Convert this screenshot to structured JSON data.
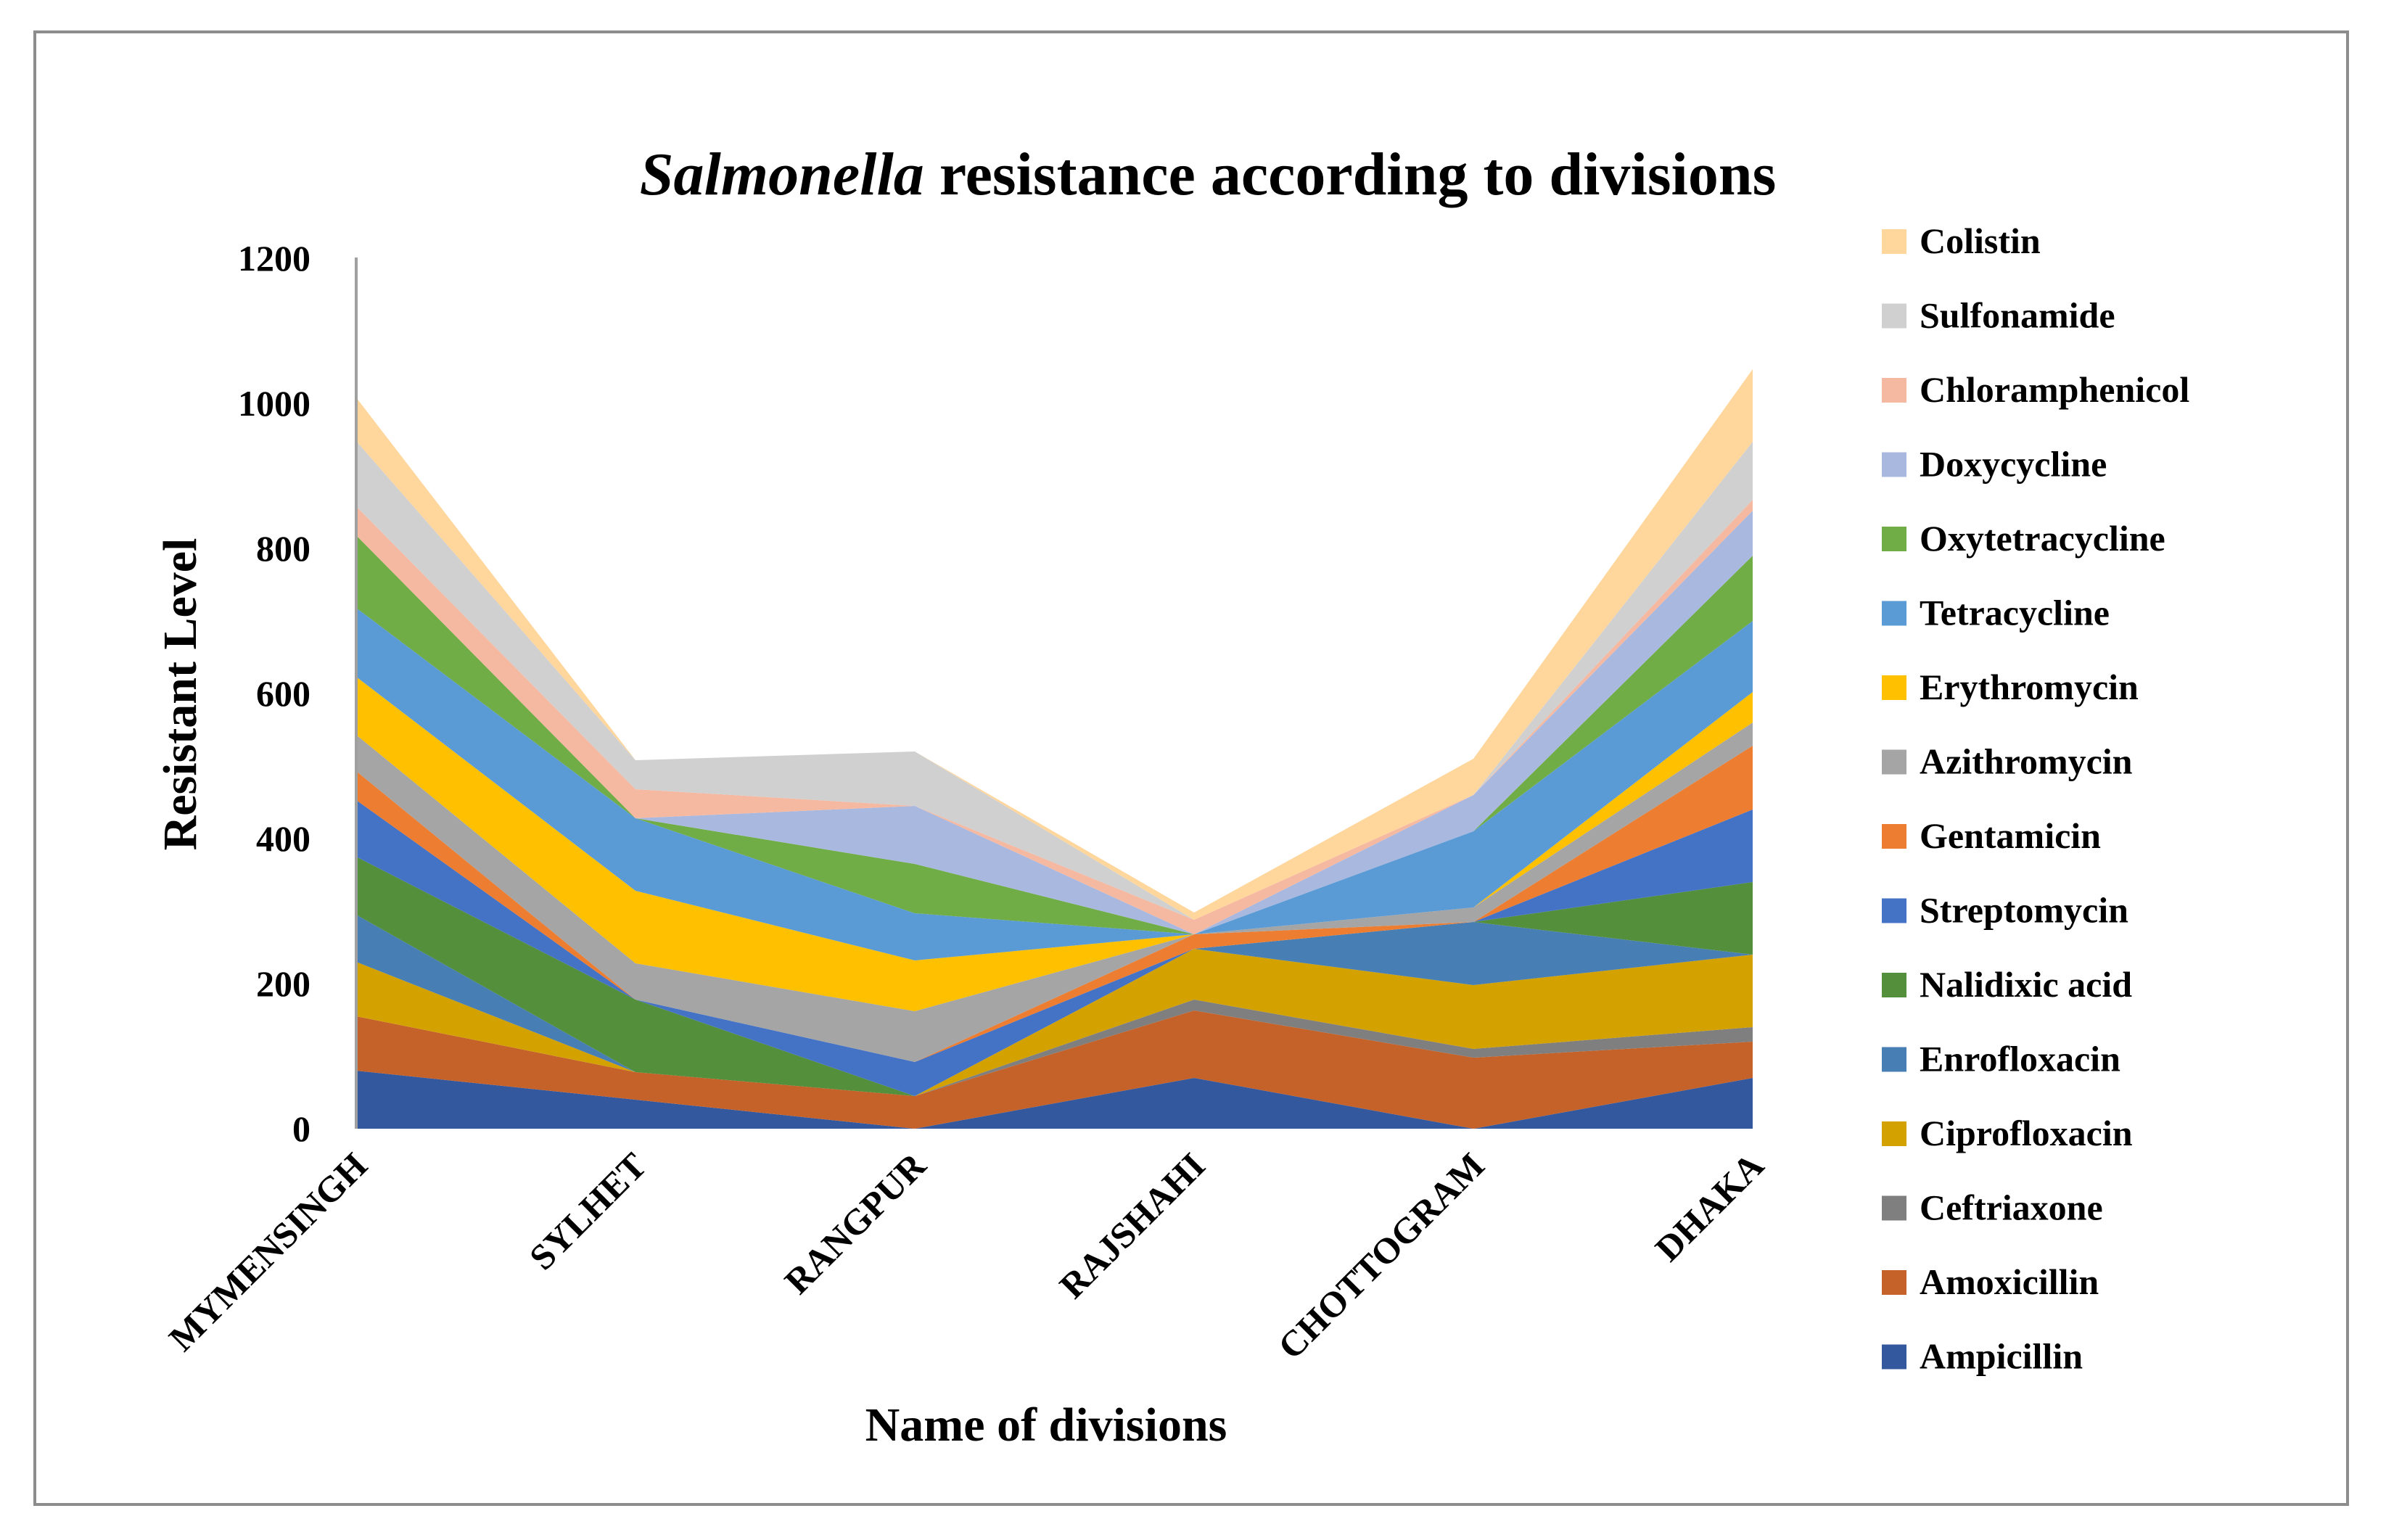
{
  "chart_data": {
    "type": "area",
    "stacked": true,
    "title_italic": "Salmonella",
    "title_rest": " resistance according to divisions",
    "xlabel": "Name of divisions",
    "ylabel": "Resistant Level",
    "ylim": [
      0,
      1200
    ],
    "yticks": [
      "0",
      "200",
      "400",
      "600",
      "800",
      "1000",
      "1200"
    ],
    "categories": [
      "MYMENSINGH",
      "SYLHET",
      "RANGPUR",
      "RAJSHAHI",
      "CHOTTOGRAM",
      "DHAKA"
    ],
    "series": [
      {
        "name": "Ampicillin",
        "color": "#34589e",
        "values": [
          80,
          40,
          0,
          70,
          0,
          70
        ]
      },
      {
        "name": "Amoxicillin",
        "color": "#c5622a",
        "values": [
          75,
          38,
          45,
          93,
          98,
          50
        ]
      },
      {
        "name": "Ceftriaxone",
        "color": "#7f7f7f",
        "values": [
          0,
          0,
          0,
          15,
          12,
          20
        ]
      },
      {
        "name": "Ciprofloxacin",
        "color": "#d3a100",
        "values": [
          75,
          0,
          0,
          70,
          88,
          100
        ]
      },
      {
        "name": "Enrofloxacin",
        "color": "#477eb4",
        "values": [
          65,
          0,
          0,
          0,
          87,
          0
        ]
      },
      {
        "name": "Nalidixic acid",
        "color": "#548f3c",
        "values": [
          80,
          100,
          0,
          0,
          0,
          100
        ]
      },
      {
        "name": "Streptomycin",
        "color": "#4472c4",
        "values": [
          78,
          0,
          47,
          0,
          0,
          100
        ]
      },
      {
        "name": "Gentamicin",
        "color": "#ed7d31",
        "values": [
          40,
          0,
          0,
          20,
          0,
          88
        ]
      },
      {
        "name": "Azithromycin",
        "color": "#a5a5a5",
        "values": [
          50,
          50,
          70,
          0,
          20,
          32
        ]
      },
      {
        "name": "Erythromycin",
        "color": "#ffc000",
        "values": [
          80,
          100,
          70,
          0,
          0,
          42
        ]
      },
      {
        "name": "Tetracycline",
        "color": "#5b9bd5",
        "values": [
          95,
          100,
          65,
          0,
          105,
          98
        ]
      },
      {
        "name": "Oxytetracycline",
        "color": "#70ad47",
        "values": [
          100,
          0,
          68,
          0,
          0,
          90
        ]
      },
      {
        "name": "Doxycycline",
        "color": "#a9b8df",
        "values": [
          0,
          0,
          80,
          0,
          50,
          62
        ]
      },
      {
        "name": "Chloramphenicol",
        "color": "#f5b9a2",
        "values": [
          40,
          40,
          0,
          20,
          0,
          15
        ]
      },
      {
        "name": "Sulfonamide",
        "color": "#d0d0d0",
        "values": [
          90,
          40,
          75,
          0,
          0,
          80
        ]
      },
      {
        "name": "Colistin",
        "color": "#ffd69c",
        "values": [
          60,
          0,
          0,
          10,
          50,
          100
        ]
      }
    ]
  }
}
